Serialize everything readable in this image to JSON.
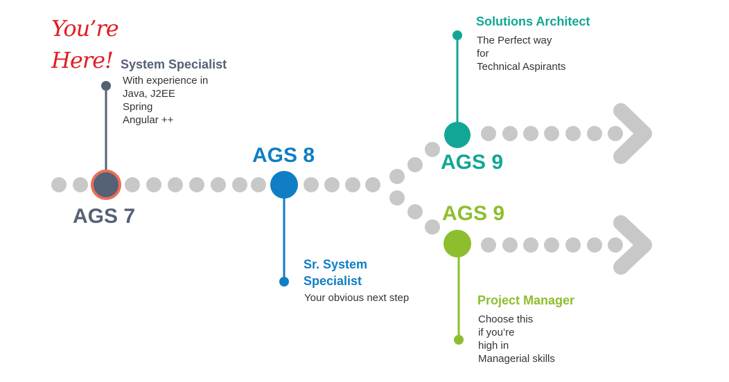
{
  "colors": {
    "dots": "#c8c8c8",
    "ags7": "#556175",
    "ags7_ring": "#ec6e5a",
    "ags8": "#0f7ec4",
    "architect": "#12a696",
    "manager": "#8dbe2e",
    "handwriting": "#e01f22",
    "desc_text": "#333333"
  },
  "you_are_here": {
    "line1": "You’re",
    "line2": "Here!"
  },
  "ags7": {
    "title": "AGS 7",
    "role": "System Specialist",
    "desc": [
      "With experience in",
      "Java, J2EE",
      "Spring",
      "Angular ++"
    ]
  },
  "ags8": {
    "title": "AGS 8",
    "role": [
      "Sr. System",
      "Specialist"
    ],
    "desc": [
      "Your obvious next step"
    ]
  },
  "ags9_architect": {
    "title": "AGS 9",
    "role": "Solutions Architect",
    "desc": [
      "The Perfect way",
      "for",
      "Technical Aspirants"
    ]
  },
  "ags9_manager": {
    "title": "AGS 9",
    "role": "Project Manager",
    "desc": [
      "Choose this",
      "if you’re",
      "high in",
      "Managerial skills"
    ]
  }
}
